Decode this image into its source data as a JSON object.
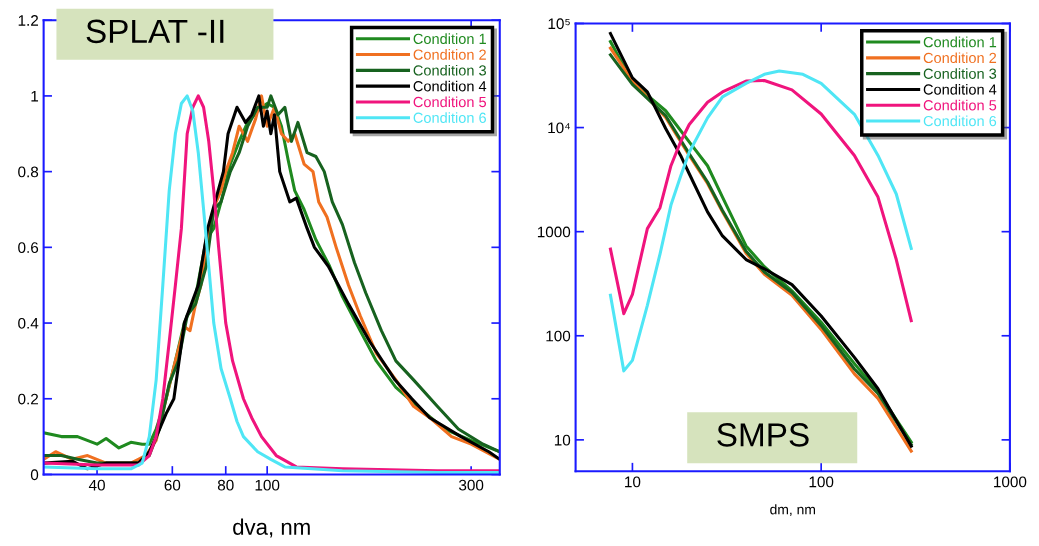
{
  "chart_data": [
    {
      "type": "line",
      "xlabel": "dva, nm",
      "annotations": [
        "SPLAT -II"
      ],
      "log": "x",
      "grid": false,
      "legend": "top right",
      "marker": "none",
      "line_style": "solid",
      "xlim": [
        30,
        350
      ],
      "xticks": [
        40,
        60,
        80,
        100,
        300
      ],
      "ylim": [
        0,
        1.2
      ],
      "yticks": [
        0,
        0.2,
        0.4,
        0.6,
        0.8,
        1,
        1.2
      ],
      "series": [
        {
          "name": "Condition 1",
          "color": "#1f8a1f",
          "x": [
            30,
            33,
            36,
            40,
            42,
            45,
            48,
            51,
            53,
            55,
            58,
            61,
            64,
            68,
            72,
            75,
            78,
            82,
            86,
            90,
            95,
            100,
            104,
            108,
            112,
            116,
            122,
            130,
            140,
            150,
            165,
            180,
            200,
            230,
            260,
            300,
            350
          ],
          "values": [
            0.11,
            0.1,
            0.1,
            0.08,
            0.095,
            0.07,
            0.085,
            0.08,
            0.08,
            0.12,
            0.2,
            0.3,
            0.4,
            0.47,
            0.62,
            0.65,
            0.72,
            0.82,
            0.88,
            0.93,
            0.96,
            0.98,
            0.97,
            0.92,
            0.83,
            0.75,
            0.7,
            0.62,
            0.55,
            0.47,
            0.38,
            0.3,
            0.23,
            0.17,
            0.12,
            0.09,
            0.06
          ]
        },
        {
          "name": "Condition 2",
          "color": "#f07020",
          "x": [
            30,
            32,
            35,
            38,
            42,
            48,
            52,
            55,
            58,
            61,
            64,
            66,
            68,
            70,
            72,
            74,
            76,
            78,
            80,
            83,
            86,
            90,
            94,
            97,
            100,
            104,
            108,
            112,
            116,
            122,
            128,
            132,
            138,
            145,
            155,
            165,
            180,
            200,
            220,
            240,
            270,
            300,
            350
          ],
          "values": [
            0.04,
            0.06,
            0.04,
            0.05,
            0.03,
            0.03,
            0.05,
            0.09,
            0.2,
            0.3,
            0.39,
            0.38,
            0.45,
            0.5,
            0.6,
            0.68,
            0.72,
            0.75,
            0.8,
            0.85,
            0.92,
            0.88,
            0.94,
            1.0,
            0.92,
            0.97,
            0.9,
            0.88,
            0.9,
            0.82,
            0.8,
            0.72,
            0.68,
            0.6,
            0.5,
            0.42,
            0.32,
            0.25,
            0.18,
            0.15,
            0.1,
            0.08,
            0.04
          ]
        },
        {
          "name": "Condition 3",
          "color": "#17621f",
          "x": [
            30,
            33,
            36,
            40,
            45,
            50,
            53,
            56,
            59,
            62,
            65,
            68,
            72,
            75,
            78,
            82,
            86,
            90,
            95,
            100,
            102,
            106,
            110,
            114,
            118,
            124,
            130,
            136,
            142,
            150,
            160,
            170,
            185,
            200,
            220,
            250,
            280,
            320,
            350
          ],
          "values": [
            0.05,
            0.05,
            0.04,
            0.03,
            0.03,
            0.03,
            0.05,
            0.12,
            0.24,
            0.3,
            0.42,
            0.45,
            0.55,
            0.7,
            0.72,
            0.8,
            0.85,
            0.92,
            0.97,
            0.97,
            1.0,
            0.95,
            0.97,
            0.88,
            0.93,
            0.85,
            0.84,
            0.8,
            0.72,
            0.66,
            0.56,
            0.48,
            0.38,
            0.3,
            0.25,
            0.18,
            0.12,
            0.08,
            0.06
          ]
        },
        {
          "name": "Condition 4",
          "color": "#000000",
          "x": [
            30,
            35,
            38,
            42,
            47,
            50,
            53,
            56,
            58,
            60.5,
            64,
            69,
            72.6,
            79,
            81,
            85,
            89,
            92,
            95.6,
            98,
            100,
            102,
            104,
            107,
            113,
            117,
            124,
            129,
            139,
            155,
            174,
            199,
            218,
            240,
            284,
            330,
            350
          ],
          "values": [
            0.03,
            0.035,
            0.015,
            0.03,
            0.03,
            0.03,
            0.06,
            0.12,
            0.16,
            0.2,
            0.4,
            0.5,
            0.65,
            0.8,
            0.9,
            0.97,
            0.93,
            0.95,
            1.0,
            0.92,
            0.96,
            0.9,
            0.95,
            0.8,
            0.72,
            0.73,
            0.65,
            0.6,
            0.55,
            0.45,
            0.35,
            0.25,
            0.2,
            0.15,
            0.1,
            0.06,
            0.04
          ]
        },
        {
          "name": "Condition 5",
          "color": "#f0147d",
          "x": [
            30,
            40,
            50,
            53,
            55,
            57,
            59,
            61,
            63,
            65,
            67,
            69,
            71,
            73,
            75,
            77,
            80,
            83,
            88,
            92,
            97,
            105,
            117,
            150,
            250,
            350
          ],
          "values": [
            0.03,
            0.025,
            0.025,
            0.05,
            0.1,
            0.2,
            0.35,
            0.5,
            0.65,
            0.9,
            0.97,
            1.0,
            0.97,
            0.88,
            0.75,
            0.6,
            0.4,
            0.3,
            0.2,
            0.15,
            0.1,
            0.05,
            0.02,
            0.015,
            0.01,
            0.01
          ]
        },
        {
          "name": "Condition 6",
          "color": "#4fe6f5",
          "x": [
            30,
            40,
            48,
            51,
            53,
            55,
            57,
            59,
            61,
            63,
            65,
            67,
            69,
            71,
            73,
            75,
            78,
            82,
            85,
            88,
            95,
            102,
            110,
            150,
            250,
            350
          ],
          "values": [
            0.02,
            0.015,
            0.015,
            0.03,
            0.1,
            0.25,
            0.5,
            0.75,
            0.9,
            0.98,
            1.0,
            0.96,
            0.85,
            0.7,
            0.55,
            0.4,
            0.28,
            0.2,
            0.14,
            0.1,
            0.06,
            0.04,
            0.02,
            0.01,
            0.005,
            0.005
          ]
        }
      ]
    },
    {
      "type": "line",
      "xlabel": "dm, nm",
      "annotations": [
        "SMPS"
      ],
      "log": "xy",
      "grid": false,
      "legend": "top right",
      "marker": "none",
      "line_style": "solid",
      "xlim": [
        5,
        1000
      ],
      "xticks": [
        10,
        100,
        1000
      ],
      "ylim": [
        5,
        100000
      ],
      "yticks": [
        10,
        100,
        1000,
        {
          "value": 10000,
          "label": "10⁴"
        },
        {
          "value": 100000,
          "label": "10⁵"
        }
      ],
      "series": [
        {
          "name": "Condition 1",
          "color": "#1f8a1f",
          "x": [
            7.65,
            10,
            15,
            20,
            25,
            30,
            40,
            50,
            70,
            100,
            150,
            200,
            300
          ],
          "values": [
            67000,
            27000,
            14500,
            7300,
            4300,
            2150,
            730,
            460,
            270,
            135,
            54,
            29,
            9.5
          ]
        },
        {
          "name": "Condition 2",
          "color": "#f07020",
          "x": [
            7.65,
            10,
            15,
            20,
            25,
            30,
            40,
            50,
            70,
            100,
            150,
            200,
            300
          ],
          "values": [
            58000,
            28000,
            12500,
            5400,
            2900,
            1550,
            620,
            390,
            245,
            115,
            43,
            25,
            7.8
          ]
        },
        {
          "name": "Condition 3",
          "color": "#17621f",
          "x": [
            7.65,
            10,
            15,
            20,
            25,
            30,
            40,
            50,
            70,
            100,
            150,
            200,
            300
          ],
          "values": [
            50000,
            26000,
            13000,
            5600,
            3000,
            1600,
            650,
            410,
            260,
            125,
            48,
            28,
            9
          ]
        },
        {
          "name": "Condition 4",
          "color": "#000000",
          "x": [
            7.65,
            10,
            12,
            15,
            18,
            20,
            25,
            30,
            40,
            50,
            70,
            100,
            150,
            200,
            300
          ],
          "values": [
            80000,
            30000,
            22000,
            9800,
            5400,
            3600,
            1550,
            910,
            540,
            440,
            310,
            155,
            62,
            31,
            8.7
          ]
        },
        {
          "name": "Condition 5",
          "color": "#f0147d",
          "x": [
            7.65,
            9,
            10,
            12,
            14,
            16,
            18,
            20,
            25,
            30,
            40,
            50,
            70,
            100,
            150,
            200,
            250,
            300
          ],
          "values": [
            680,
            163,
            250,
            1070,
            1700,
            4300,
            7300,
            10700,
            17500,
            22000,
            28000,
            28300,
            23000,
            13500,
            5400,
            2150,
            540,
            140
          ]
        },
        {
          "name": "Condition 6",
          "color": "#4fe6f5",
          "x": [
            7.65,
            9,
            10,
            12,
            14,
            16,
            18,
            20,
            25,
            30,
            40,
            50,
            60,
            80,
            100,
            150,
            200,
            250,
            300
          ],
          "values": [
            245,
            46,
            58,
            196,
            610,
            1800,
            3400,
            5800,
            12400,
            19700,
            26600,
            32500,
            35000,
            32500,
            26600,
            13400,
            5400,
            2300,
            690
          ]
        }
      ]
    }
  ]
}
